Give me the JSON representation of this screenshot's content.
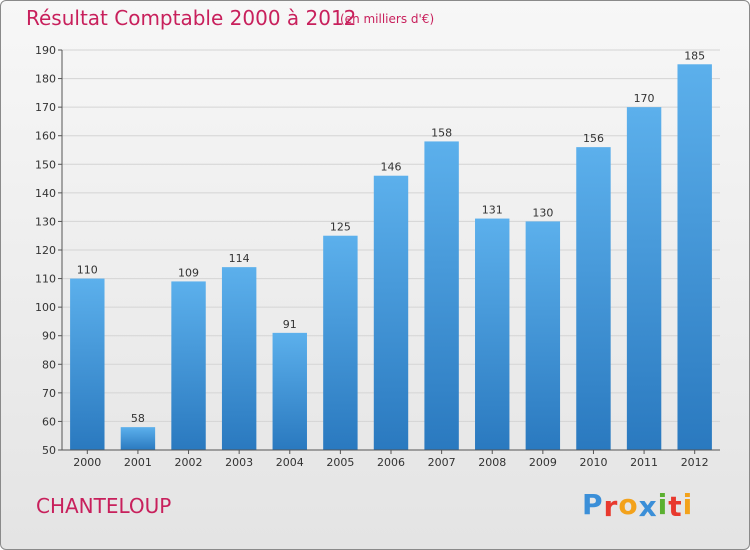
{
  "header": {
    "title": "Résultat Comptable 2000 à 2012",
    "subtitle": "(en milliers d'€)"
  },
  "footer": {
    "place_name": "CHANTELOUP",
    "logo_text": "Proxiti",
    "logo_colors": [
      "#3b8fd8",
      "#e8392e",
      "#f3a21b",
      "#3b8fd8",
      "#5bb030",
      "#e8392e",
      "#f3a21b"
    ]
  },
  "colors": {
    "title": "#c8205c",
    "bar_top": "#5cb0ec",
    "bar_bottom": "#2a79bf",
    "grid": "#d4d4d4",
    "axis": "#555555"
  },
  "chart_data": {
    "type": "bar",
    "title": "Résultat Comptable 2000 à 2012",
    "subtitle": "(en milliers d'€)",
    "xlabel": "",
    "ylabel": "",
    "categories": [
      "2000",
      "2001",
      "2002",
      "2003",
      "2004",
      "2005",
      "2006",
      "2007",
      "2008",
      "2009",
      "2010",
      "2011",
      "2012"
    ],
    "values": [
      110,
      58,
      109,
      114,
      91,
      125,
      146,
      158,
      131,
      130,
      156,
      170,
      185
    ],
    "ylim": [
      50,
      190
    ],
    "yticks": [
      50,
      60,
      70,
      80,
      90,
      100,
      110,
      120,
      130,
      140,
      150,
      160,
      170,
      180,
      190
    ],
    "grid": true,
    "data_labels": true
  }
}
